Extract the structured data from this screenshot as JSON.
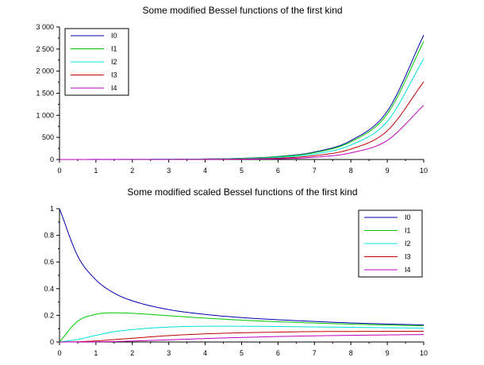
{
  "chart_data": [
    {
      "type": "line",
      "title": "Some modified Bessel functions of the first kind",
      "xlabel": "",
      "ylabel": "",
      "xlim": [
        0,
        10
      ],
      "ylim": [
        0,
        3000
      ],
      "x_ticks": [
        "0",
        "1",
        "2",
        "3",
        "4",
        "5",
        "6",
        "7",
        "8",
        "9",
        "10"
      ],
      "y_ticks": [
        "0",
        "500",
        "1 000",
        "1 500",
        "2 000",
        "2 500",
        "3 000"
      ],
      "x_tick_values": [
        0,
        1,
        2,
        3,
        4,
        5,
        6,
        7,
        8,
        9,
        10
      ],
      "y_tick_values": [
        0,
        500,
        1000,
        1500,
        2000,
        2500,
        3000
      ],
      "grid": false,
      "legend_position": "top-left",
      "x": [
        0,
        1,
        2,
        3,
        4,
        5,
        6,
        7,
        8,
        9,
        10
      ],
      "series": [
        {
          "name": "I0",
          "color": "#0000b0",
          "values": [
            1.0,
            1.27,
            2.28,
            4.88,
            11.3,
            27.2,
            67.2,
            168.6,
            427.6,
            1093.6,
            2815.7
          ]
        },
        {
          "name": "I1",
          "color": "#00c800",
          "values": [
            0.0,
            0.57,
            1.59,
            3.95,
            9.76,
            24.3,
            61.3,
            156.0,
            399.9,
            1030.9,
            2671.0
          ]
        },
        {
          "name": "I2",
          "color": "#00e0e0",
          "values": [
            0.0,
            0.14,
            0.69,
            2.25,
            6.42,
            17.5,
            46.8,
            124.0,
            327.6,
            864.5,
            2281.5
          ]
        },
        {
          "name": "I3",
          "color": "#c00000",
          "values": [
            0.0,
            0.02,
            0.21,
            0.96,
            3.34,
            10.3,
            30.0,
            85.2,
            236.0,
            650.1,
            1758.4
          ]
        },
        {
          "name": "I4",
          "color": "#c000c0",
          "values": [
            0.0,
            0.003,
            0.05,
            0.33,
            1.42,
            5.11,
            16.5,
            50.7,
            150.5,
            433.1,
            1226.5
          ]
        }
      ]
    },
    {
      "type": "line",
      "title": "Some modified scaled Bessel functions of the first kind",
      "xlabel": "",
      "ylabel": "",
      "xlim": [
        0,
        10
      ],
      "ylim": [
        0,
        1
      ],
      "x_ticks": [
        "0",
        "1",
        "2",
        "3",
        "4",
        "5",
        "6",
        "7",
        "8",
        "9",
        "10"
      ],
      "y_ticks": [
        "0",
        "0.2",
        "0.4",
        "0.6",
        "0.8",
        "1"
      ],
      "x_tick_values": [
        0,
        1,
        2,
        3,
        4,
        5,
        6,
        7,
        8,
        9,
        10
      ],
      "y_tick_values": [
        0,
        0.2,
        0.4,
        0.6,
        0.8,
        1
      ],
      "grid": false,
      "legend_position": "top-right",
      "x": [
        0,
        0.5,
        1,
        1.5,
        2,
        3,
        4,
        5,
        6,
        7,
        8,
        9,
        10
      ],
      "series": [
        {
          "name": "I0",
          "color": "#0000b0",
          "values": [
            1.0,
            0.645,
            0.466,
            0.367,
            0.309,
            0.243,
            0.207,
            0.183,
            0.167,
            0.154,
            0.143,
            0.135,
            0.128
          ]
        },
        {
          "name": "I1",
          "color": "#00c800",
          "values": [
            0.0,
            0.156,
            0.208,
            0.219,
            0.215,
            0.197,
            0.179,
            0.164,
            0.152,
            0.142,
            0.134,
            0.127,
            0.121
          ]
        },
        {
          "name": "I2",
          "color": "#00e0e0",
          "values": [
            0.0,
            0.019,
            0.05,
            0.077,
            0.093,
            0.112,
            0.118,
            0.118,
            0.116,
            0.113,
            0.11,
            0.107,
            0.104
          ]
        },
        {
          "name": "I3",
          "color": "#c00000",
          "values": [
            0.0,
            0.002,
            0.008,
            0.018,
            0.028,
            0.048,
            0.061,
            0.069,
            0.074,
            0.078,
            0.079,
            0.08,
            0.08
          ]
        },
        {
          "name": "I4",
          "color": "#c000c0",
          "values": [
            0.0,
            0.0001,
            0.001,
            0.003,
            0.007,
            0.016,
            0.026,
            0.034,
            0.041,
            0.046,
            0.05,
            0.053,
            0.056
          ]
        }
      ]
    }
  ]
}
